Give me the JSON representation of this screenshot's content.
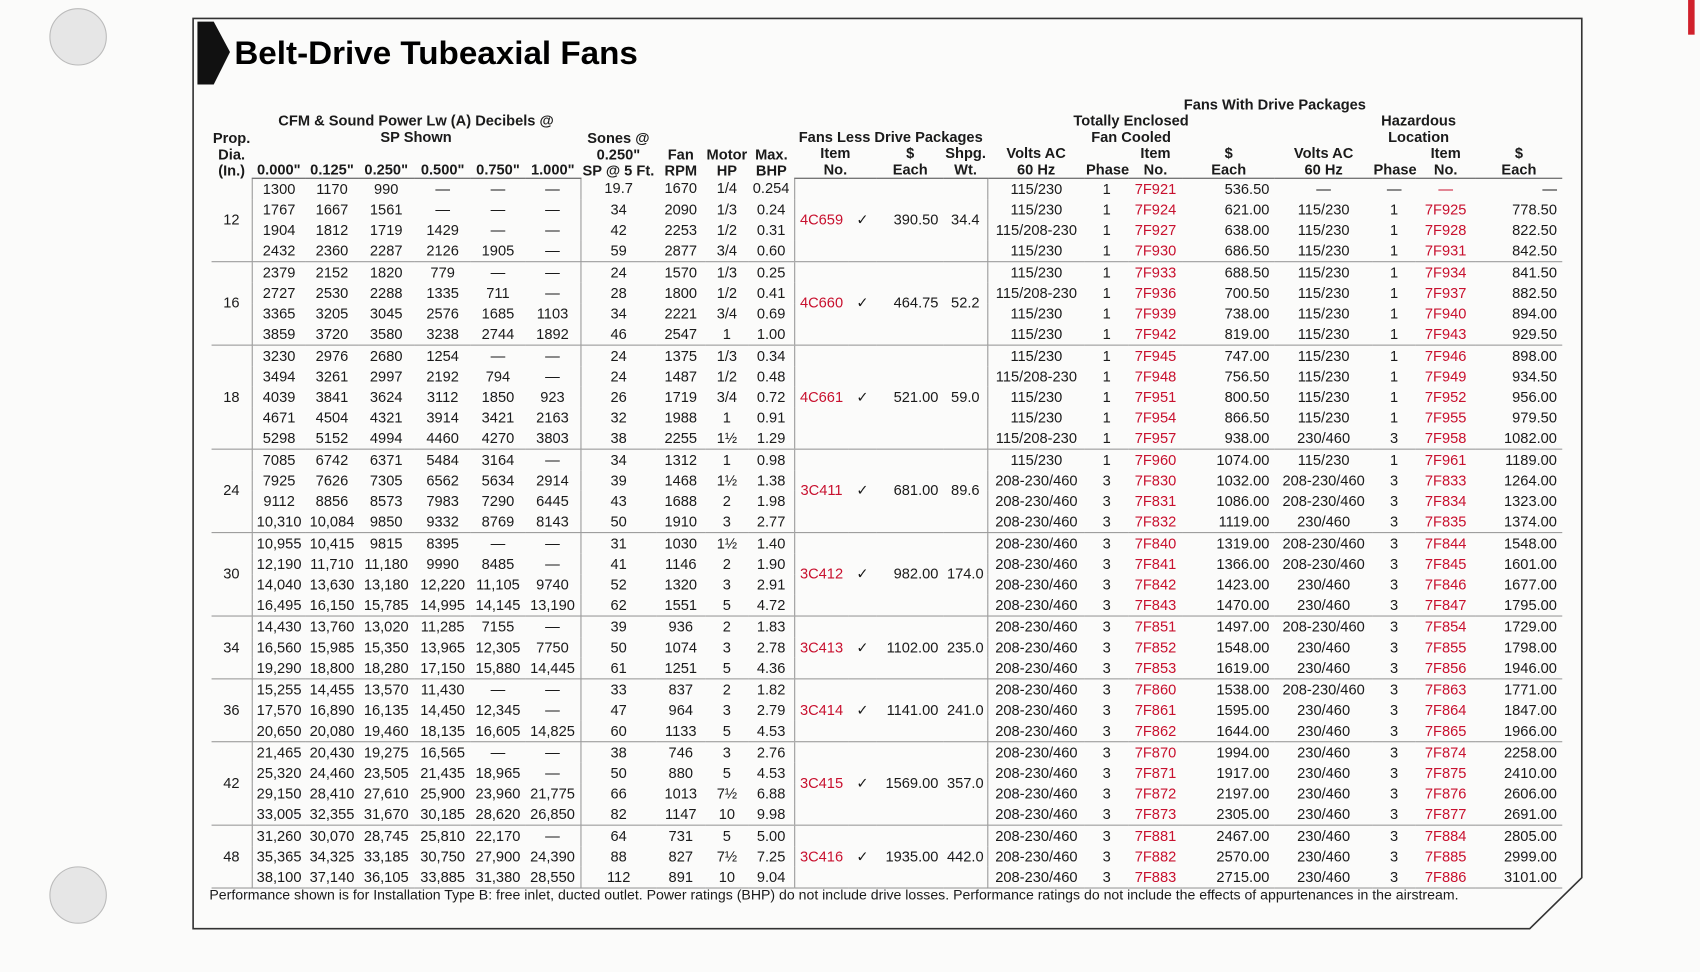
{
  "title": "Belt-Drive Tubeaxial Fans",
  "headers": {
    "dia": "Prop.\nDia.\n(In.)",
    "cfm": "CFM & Sound Power Lw (A) Decibels @\nSP Shown",
    "sp": [
      "0.000\"",
      "0.125\"",
      "0.250\"",
      "0.500\"",
      "0.750\"",
      "1.000\""
    ],
    "sones": "Sones @\n0.250\"\nSP @ 5 Ft.",
    "rpm": "Fan\nRPM",
    "hp": "Motor\nHP",
    "bhp": "Max.\nBHP",
    "fld": "Fans Less Drive Packages",
    "fld_item": "Item\nNo.",
    "fld_each": "$\nEach",
    "fld_wt": "Shpg.\nWt.",
    "fwdp": "Fans With Drive Packages",
    "tefc": "Totally Enclosed\nFan Cooled",
    "hz": "Hazardous\nLocation",
    "te_cols": [
      "Volts AC\n60 Hz",
      "Phase",
      "Item\nNo.",
      "$\nEach"
    ],
    "hz_cols": [
      "Volts AC\n60 Hz",
      "Phase",
      "Item\nNo.",
      "$\nEach"
    ]
  },
  "groups": [
    {
      "dia": "12",
      "item": "4C659",
      "check": "✓",
      "each": "390.50",
      "wt": "34.4",
      "rows": [
        [
          "1300",
          "1170",
          "990",
          "—",
          "—",
          "—",
          "19.7",
          "1670",
          "1/4",
          "0.254",
          "115/230",
          "1",
          "7F921",
          "536.50",
          "—",
          "—",
          "—",
          "—"
        ],
        [
          "1767",
          "1667",
          "1561",
          "—",
          "—",
          "—",
          "34",
          "2090",
          "1/3",
          "0.24",
          "115/230",
          "1",
          "7F924",
          "621.00",
          "115/230",
          "1",
          "7F925",
          "778.50"
        ],
        [
          "1904",
          "1812",
          "1719",
          "1429",
          "—",
          "—",
          "42",
          "2253",
          "1/2",
          "0.31",
          "115/208-230",
          "1",
          "7F927",
          "638.00",
          "115/230",
          "1",
          "7F928",
          "822.50"
        ],
        [
          "2432",
          "2360",
          "2287",
          "2126",
          "1905",
          "—",
          "59",
          "2877",
          "3/4",
          "0.60",
          "115/230",
          "1",
          "7F930",
          "686.50",
          "115/230",
          "1",
          "7F931",
          "842.50"
        ]
      ]
    },
    {
      "dia": "16",
      "item": "4C660",
      "check": "✓",
      "each": "464.75",
      "wt": "52.2",
      "rows": [
        [
          "2379",
          "2152",
          "1820",
          "779",
          "—",
          "—",
          "24",
          "1570",
          "1/3",
          "0.25",
          "115/230",
          "1",
          "7F933",
          "688.50",
          "115/230",
          "1",
          "7F934",
          "841.50"
        ],
        [
          "2727",
          "2530",
          "2288",
          "1335",
          "711",
          "—",
          "28",
          "1800",
          "1/2",
          "0.41",
          "115/208-230",
          "1",
          "7F936",
          "700.50",
          "115/230",
          "1",
          "7F937",
          "882.50"
        ],
        [
          "3365",
          "3205",
          "3045",
          "2576",
          "1685",
          "1103",
          "34",
          "2221",
          "3/4",
          "0.69",
          "115/230",
          "1",
          "7F939",
          "738.00",
          "115/230",
          "1",
          "7F940",
          "894.00"
        ],
        [
          "3859",
          "3720",
          "3580",
          "3238",
          "2744",
          "1892",
          "46",
          "2547",
          "1",
          "1.00",
          "115/230",
          "1",
          "7F942",
          "819.00",
          "115/230",
          "1",
          "7F943",
          "929.50"
        ]
      ]
    },
    {
      "dia": "18",
      "item": "4C661",
      "check": "✓",
      "each": "521.00",
      "wt": "59.0",
      "rows": [
        [
          "3230",
          "2976",
          "2680",
          "1254",
          "—",
          "—",
          "24",
          "1375",
          "1/3",
          "0.34",
          "115/230",
          "1",
          "7F945",
          "747.00",
          "115/230",
          "1",
          "7F946",
          "898.00"
        ],
        [
          "3494",
          "3261",
          "2997",
          "2192",
          "794",
          "—",
          "24",
          "1487",
          "1/2",
          "0.48",
          "115/208-230",
          "1",
          "7F948",
          "756.50",
          "115/230",
          "1",
          "7F949",
          "934.50"
        ],
        [
          "4039",
          "3841",
          "3624",
          "3112",
          "1850",
          "923",
          "26",
          "1719",
          "3/4",
          "0.72",
          "115/230",
          "1",
          "7F951",
          "800.50",
          "115/230",
          "1",
          "7F952",
          "956.00"
        ],
        [
          "4671",
          "4504",
          "4321",
          "3914",
          "3421",
          "2163",
          "32",
          "1988",
          "1",
          "0.91",
          "115/230",
          "1",
          "7F954",
          "866.50",
          "115/230",
          "1",
          "7F955",
          "979.50"
        ],
        [
          "5298",
          "5152",
          "4994",
          "4460",
          "4270",
          "3803",
          "38",
          "2255",
          "1½",
          "1.29",
          "115/208-230",
          "1",
          "7F957",
          "938.00",
          "230/460",
          "3",
          "7F958",
          "1082.00"
        ]
      ]
    },
    {
      "dia": "24",
      "item": "3C411",
      "check": "✓",
      "each": "681.00",
      "wt": "89.6",
      "rows": [
        [
          "7085",
          "6742",
          "6371",
          "5484",
          "3164",
          "—",
          "34",
          "1312",
          "1",
          "0.98",
          "115/230",
          "1",
          "7F960",
          "1074.00",
          "115/230",
          "1",
          "7F961",
          "1189.00"
        ],
        [
          "7925",
          "7626",
          "7305",
          "6562",
          "5634",
          "2914",
          "39",
          "1468",
          "1½",
          "1.38",
          "208-230/460",
          "3",
          "7F830",
          "1032.00",
          "208-230/460",
          "3",
          "7F833",
          "1264.00"
        ],
        [
          "9112",
          "8856",
          "8573",
          "7983",
          "7290",
          "6445",
          "43",
          "1688",
          "2",
          "1.98",
          "208-230/460",
          "3",
          "7F831",
          "1086.00",
          "208-230/460",
          "3",
          "7F834",
          "1323.00"
        ],
        [
          "10,310",
          "10,084",
          "9850",
          "9332",
          "8769",
          "8143",
          "50",
          "1910",
          "3",
          "2.77",
          "208-230/460",
          "3",
          "7F832",
          "1119.00",
          "230/460",
          "3",
          "7F835",
          "1374.00"
        ]
      ]
    },
    {
      "dia": "30",
      "item": "3C412",
      "check": "✓",
      "each": "982.00",
      "wt": "174.0",
      "rows": [
        [
          "10,955",
          "10,415",
          "9815",
          "8395",
          "—",
          "—",
          "31",
          "1030",
          "1½",
          "1.40",
          "208-230/460",
          "3",
          "7F840",
          "1319.00",
          "208-230/460",
          "3",
          "7F844",
          "1548.00"
        ],
        [
          "12,190",
          "11,710",
          "11,180",
          "9990",
          "8485",
          "—",
          "41",
          "1146",
          "2",
          "1.90",
          "208-230/460",
          "3",
          "7F841",
          "1366.00",
          "208-230/460",
          "3",
          "7F845",
          "1601.00"
        ],
        [
          "14,040",
          "13,630",
          "13,180",
          "12,220",
          "11,105",
          "9740",
          "52",
          "1320",
          "3",
          "2.91",
          "208-230/460",
          "3",
          "7F842",
          "1423.00",
          "230/460",
          "3",
          "7F846",
          "1677.00"
        ],
        [
          "16,495",
          "16,150",
          "15,785",
          "14,995",
          "14,145",
          "13,190",
          "62",
          "1551",
          "5",
          "4.72",
          "208-230/460",
          "3",
          "7F843",
          "1470.00",
          "230/460",
          "3",
          "7F847",
          "1795.00"
        ]
      ]
    },
    {
      "dia": "34",
      "item": "3C413",
      "check": "✓",
      "each": "1102.00",
      "wt": "235.0",
      "rows": [
        [
          "14,430",
          "13,760",
          "13,020",
          "11,285",
          "7155",
          "—",
          "39",
          "936",
          "2",
          "1.83",
          "208-230/460",
          "3",
          "7F851",
          "1497.00",
          "208-230/460",
          "3",
          "7F854",
          "1729.00"
        ],
        [
          "16,560",
          "15,985",
          "15,350",
          "13,965",
          "12,305",
          "7750",
          "50",
          "1074",
          "3",
          "2.78",
          "208-230/460",
          "3",
          "7F852",
          "1548.00",
          "230/460",
          "3",
          "7F855",
          "1798.00"
        ],
        [
          "19,290",
          "18,800",
          "18,280",
          "17,150",
          "15,880",
          "14,445",
          "61",
          "1251",
          "5",
          "4.36",
          "208-230/460",
          "3",
          "7F853",
          "1619.00",
          "230/460",
          "3",
          "7F856",
          "1946.00"
        ]
      ]
    },
    {
      "dia": "36",
      "item": "3C414",
      "check": "✓",
      "each": "1141.00",
      "wt": "241.0",
      "rows": [
        [
          "15,255",
          "14,455",
          "13,570",
          "11,430",
          "—",
          "—",
          "33",
          "837",
          "2",
          "1.82",
          "208-230/460",
          "3",
          "7F860",
          "1538.00",
          "208-230/460",
          "3",
          "7F863",
          "1771.00"
        ],
        [
          "17,570",
          "16,890",
          "16,135",
          "14,450",
          "12,345",
          "—",
          "47",
          "964",
          "3",
          "2.79",
          "208-230/460",
          "3",
          "7F861",
          "1595.00",
          "230/460",
          "3",
          "7F864",
          "1847.00"
        ],
        [
          "20,650",
          "20,080",
          "19,460",
          "18,135",
          "16,605",
          "14,825",
          "60",
          "1133",
          "5",
          "4.53",
          "208-230/460",
          "3",
          "7F862",
          "1644.00",
          "230/460",
          "3",
          "7F865",
          "1966.00"
        ]
      ]
    },
    {
      "dia": "42",
      "item": "3C415",
      "check": "✓",
      "each": "1569.00",
      "wt": "357.0",
      "rows": [
        [
          "21,465",
          "20,430",
          "19,275",
          "16,565",
          "—",
          "—",
          "38",
          "746",
          "3",
          "2.76",
          "208-230/460",
          "3",
          "7F870",
          "1994.00",
          "230/460",
          "3",
          "7F874",
          "2258.00"
        ],
        [
          "25,320",
          "24,460",
          "23,505",
          "21,435",
          "18,965",
          "—",
          "50",
          "880",
          "5",
          "4.53",
          "208-230/460",
          "3",
          "7F871",
          "1917.00",
          "230/460",
          "3",
          "7F875",
          "2410.00"
        ],
        [
          "29,150",
          "28,410",
          "27,610",
          "25,900",
          "23,960",
          "21,775",
          "66",
          "1013",
          "7½",
          "6.88",
          "208-230/460",
          "3",
          "7F872",
          "2197.00",
          "230/460",
          "3",
          "7F876",
          "2606.00"
        ],
        [
          "33,005",
          "32,355",
          "31,670",
          "30,185",
          "28,620",
          "26,850",
          "82",
          "1147",
          "10",
          "9.98",
          "208-230/460",
          "3",
          "7F873",
          "2305.00",
          "230/460",
          "3",
          "7F877",
          "2691.00"
        ]
      ]
    },
    {
      "dia": "48",
      "item": "3C416",
      "check": "✓",
      "each": "1935.00",
      "wt": "442.0",
      "rows": [
        [
          "31,260",
          "30,070",
          "28,745",
          "25,810",
          "22,170",
          "—",
          "64",
          "731",
          "5",
          "5.00",
          "208-230/460",
          "3",
          "7F881",
          "2467.00",
          "230/460",
          "3",
          "7F884",
          "2805.00"
        ],
        [
          "35,365",
          "34,325",
          "33,185",
          "30,750",
          "27,900",
          "24,390",
          "88",
          "827",
          "7½",
          "7.25",
          "208-230/460",
          "3",
          "7F882",
          "2570.00",
          "230/460",
          "3",
          "7F885",
          "2999.00"
        ],
        [
          "38,100",
          "37,140",
          "36,105",
          "33,885",
          "31,380",
          "28,550",
          "112",
          "891",
          "10",
          "9.04",
          "208-230/460",
          "3",
          "7F883",
          "2715.00",
          "230/460",
          "3",
          "7F886",
          "3101.00"
        ]
      ]
    }
  ],
  "footnote": "Performance shown is for Installation Type B: free inlet, ducted outlet. Power ratings (BHP) do not include drive losses. Performance ratings do not include the effects of appurtenances in the airstream."
}
